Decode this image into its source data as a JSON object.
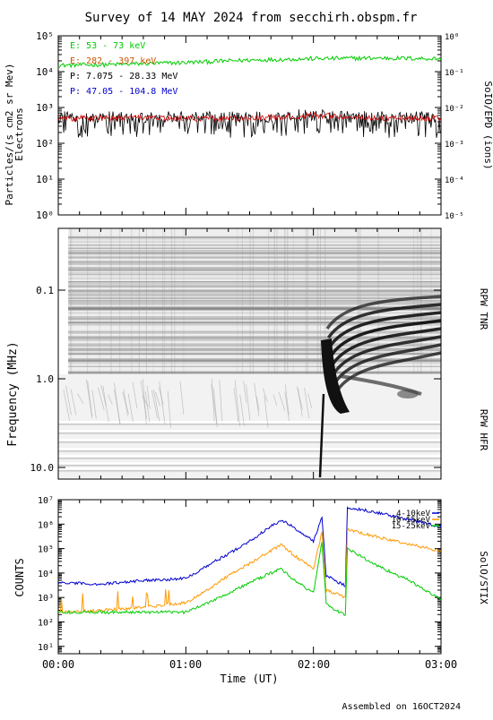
{
  "title": "Survey of 14 MAY 2024 from secchirh.obspm.fr",
  "footer": "Assembled on 16OCT2024",
  "colors": {
    "electrons_low": "#00cc00",
    "electrons_high": "#cc5500",
    "protons_low": "#000000",
    "protons_high": "#0000cc",
    "stix_4_10": "#0000cc",
    "stix_10_15": "#ff9900",
    "stix_15_25": "#00cc00",
    "proton_line": "#cc0000"
  },
  "chart_data": [
    {
      "type": "line",
      "panel": "SolO/EPD",
      "ylabel_left": [
        "Particles/(s cm2 sr Mev)",
        "Electrons"
      ],
      "ylabel_right": "SoIO/EPD (ions)",
      "yscale": "log",
      "ylim_left": [
        1,
        100000
      ],
      "ylim_right": [
        1e-05,
        1
      ],
      "yticks_left": [
        "10^0",
        "10^1",
        "10^2",
        "10^3",
        "10^4",
        "10^5"
      ],
      "yticks_right": [
        "10^-5",
        "10^-4",
        "10^-3",
        "10^-2",
        "10^-1",
        "10^0"
      ],
      "legend": [
        {
          "label": "E: 53 - 73 keV",
          "color": "#00cc00"
        },
        {
          "label": "E: 282 - 397 keV",
          "color": "#cc5500"
        },
        {
          "label": "P: 7.075 - 28.33 MeV",
          "color": "#000000"
        },
        {
          "label": "P: 47.05 - 104.8 MeV",
          "color": "#0000cc"
        }
      ],
      "series": [
        {
          "name": "E: 53 - 73 keV",
          "x": [
            "00:00",
            "00:30",
            "01:00",
            "01:30",
            "02:00",
            "02:30",
            "03:00"
          ],
          "y": [
            15000,
            16000,
            18000,
            21000,
            23000,
            24000,
            23000
          ]
        },
        {
          "name": "P: 7.075 - 28.33 MeV",
          "x": [
            "00:00",
            "00:30",
            "01:00",
            "01:30",
            "02:00",
            "02:30",
            "03:00"
          ],
          "y": [
            0.005,
            0.005,
            0.005,
            0.005,
            0.006,
            0.005,
            0.005
          ]
        }
      ]
    },
    {
      "type": "heatmap",
      "panel": "RPW spectrogram",
      "ylabel": "Frequency (MHz)",
      "yscale": "log",
      "yticks": [
        "0.1",
        "1.0",
        "10.0"
      ],
      "right_labels": [
        "RPW TNR",
        "RPW HFR"
      ]
    },
    {
      "type": "line",
      "panel": "SolO/STIX",
      "ylabel_left": "COUNTS",
      "ylabel_right": "SolO/STIX",
      "yscale": "log",
      "ylim": [
        5,
        10000000
      ],
      "yticks": [
        "10^1",
        "10^2",
        "10^3",
        "10^4",
        "10^5",
        "10^6",
        "10^7"
      ],
      "xlabel": "Time (UT)",
      "xticks": [
        "00:00",
        "01:00",
        "02:00",
        "03:00"
      ],
      "series": [
        {
          "name": "4-10keV",
          "x": [
            "00:00",
            "00:20",
            "00:40",
            "01:00",
            "01:10",
            "01:20",
            "01:30",
            "01:40",
            "01:45",
            "01:50",
            "02:00",
            "02:04",
            "02:06",
            "02:10",
            "02:15",
            "02:16",
            "02:30",
            "02:45",
            "03:00"
          ],
          "y": [
            4000,
            3500,
            5000,
            6000,
            20000,
            60000,
            200000,
            800000,
            1500000,
            800000,
            200000,
            2000000,
            8000,
            5000,
            3000,
            5000000,
            3000000,
            1500000,
            800000
          ]
        },
        {
          "name": "10-15keV",
          "x": [
            "00:00",
            "00:20",
            "00:40",
            "01:00",
            "01:10",
            "01:20",
            "01:30",
            "01:40",
            "01:45",
            "01:50",
            "02:00",
            "02:04",
            "02:06",
            "02:10",
            "02:15",
            "02:16",
            "02:30",
            "02:45",
            "03:00"
          ],
          "y": [
            250,
            300,
            400,
            600,
            2000,
            8000,
            25000,
            80000,
            150000,
            60000,
            15000,
            500000,
            2000,
            1500,
            1000,
            600000,
            300000,
            150000,
            80000
          ]
        },
        {
          "name": "15-25keV",
          "x": [
            "00:00",
            "00:20",
            "00:40",
            "01:00",
            "01:10",
            "01:20",
            "01:30",
            "01:40",
            "01:45",
            "01:50",
            "02:00",
            "02:04",
            "02:06",
            "02:10",
            "02:15",
            "02:16",
            "02:30",
            "02:45",
            "03:00"
          ],
          "y": [
            250,
            250,
            250,
            250,
            600,
            1500,
            4000,
            10000,
            15000,
            6000,
            1500,
            200000,
            600,
            300,
            200,
            100000,
            20000,
            5000,
            800
          ]
        }
      ]
    }
  ]
}
